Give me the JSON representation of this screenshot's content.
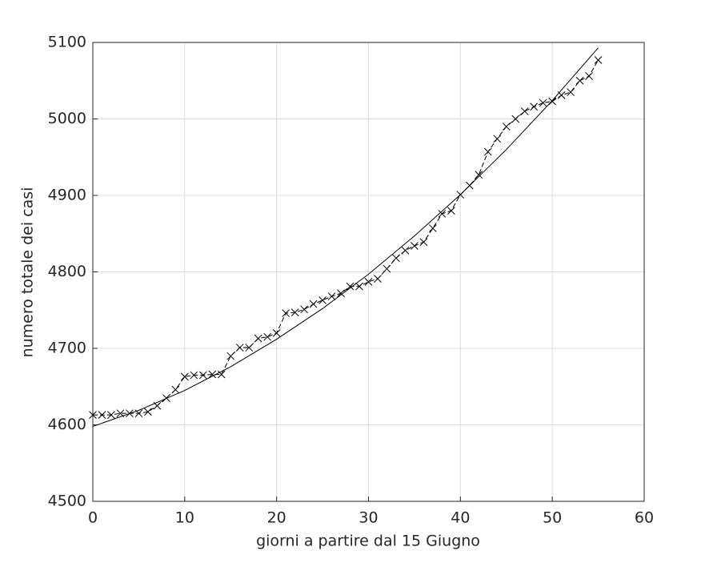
{
  "chart_data": {
    "type": "line",
    "xlabel": "giorni a partire dal 15 Giugno",
    "ylabel": "numero totale dei casi",
    "xlim": [
      0,
      60
    ],
    "xticks": [
      0,
      10,
      20,
      30,
      40,
      50,
      60
    ],
    "ylim": [
      4500,
      5100
    ],
    "yticks": [
      4500,
      4600,
      4700,
      4800,
      4900,
      5000,
      5100
    ],
    "grid": true,
    "series": [
      {
        "color": "#000000",
        "marker": "x",
        "line": "dashed",
        "x": [
          0,
          1,
          2,
          3,
          4,
          5,
          6,
          7,
          8,
          9,
          10,
          11,
          12,
          13,
          14,
          15,
          16,
          17,
          18,
          19,
          20,
          21,
          22,
          23,
          24,
          25,
          26,
          27,
          28,
          29,
          30,
          31,
          32,
          33,
          34,
          35,
          36,
          37,
          38,
          39,
          40,
          41,
          42,
          43,
          44,
          45,
          46,
          47,
          48,
          49,
          50,
          51,
          52,
          53,
          54,
          55
        ],
        "values": [
          4613,
          4613,
          4613,
          4615,
          4615,
          4615,
          4617,
          4625,
          4635,
          4646,
          4663,
          4665,
          4665,
          4666,
          4666,
          4690,
          4701,
          4701,
          4713,
          4715,
          4720,
          4746,
          4747,
          4751,
          4758,
          4763,
          4768,
          4772,
          4781,
          4781,
          4787,
          4791,
          4804,
          4818,
          4828,
          4834,
          4839,
          4857,
          4876,
          4880,
          4901,
          4913,
          4927,
          4957,
          4974,
          4990,
          5000,
          5010,
          5016,
          5021,
          5023,
          5031,
          5035,
          5050,
          5056,
          5077
        ]
      },
      {
        "color": "#000000",
        "line": "solid",
        "x": [
          0,
          5,
          10,
          15,
          20,
          25,
          30,
          35,
          40,
          45,
          50,
          55
        ],
        "values": [
          4598,
          4619,
          4645,
          4676,
          4712,
          4752,
          4797,
          4847,
          4901,
          4960,
          5024,
          5093
        ]
      }
    ]
  }
}
